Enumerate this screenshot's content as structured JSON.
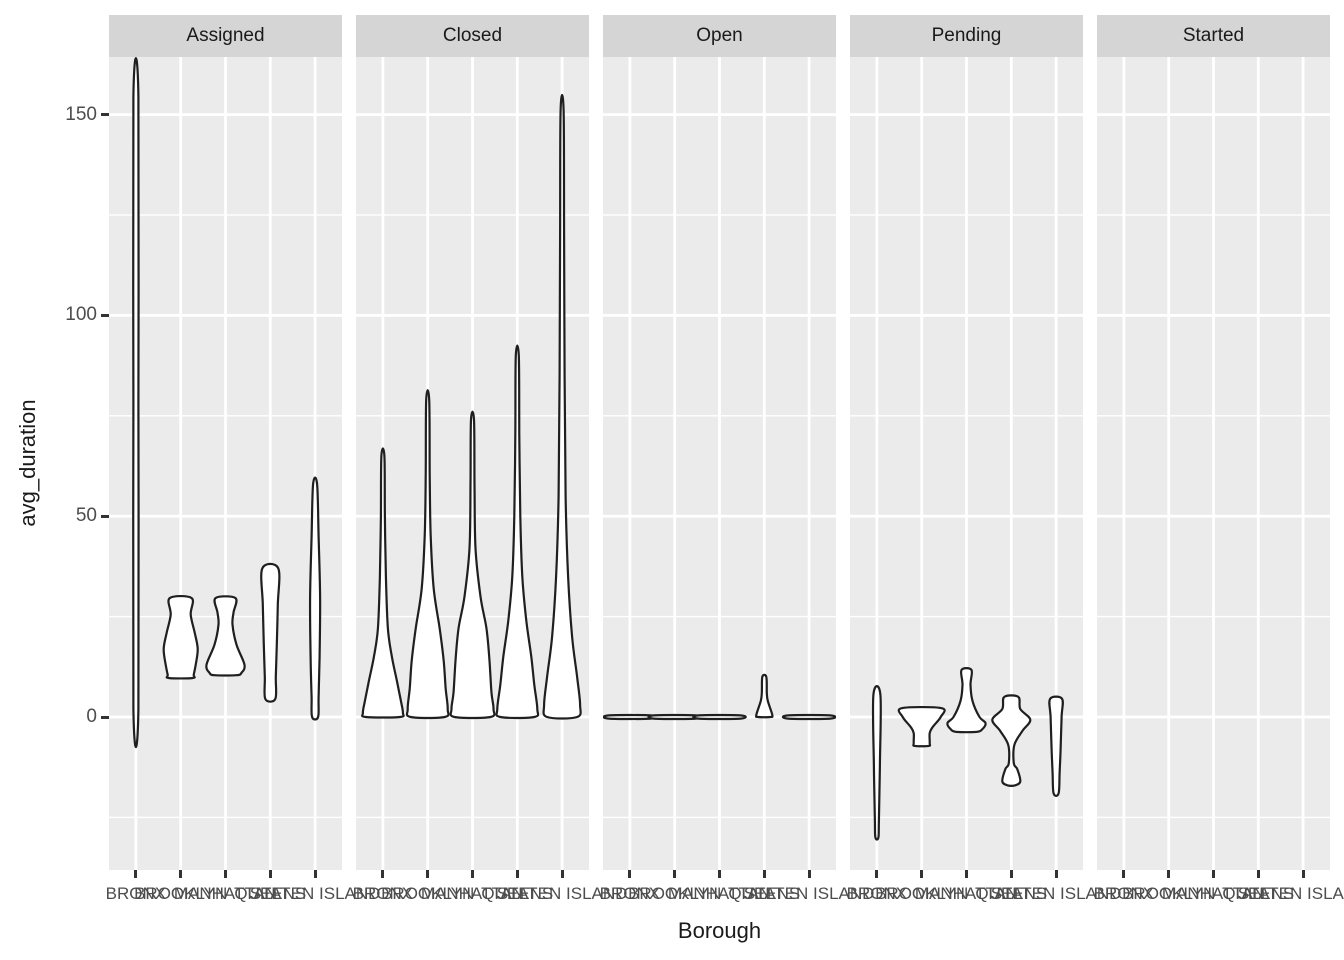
{
  "axes": {
    "x_title": "Borough",
    "y_title": "avg_duration"
  },
  "style": {
    "panel_background": "#ebebeb",
    "strip_background": "#d5d5d5",
    "grid_color": "#ffffff",
    "violin_fill": "#ffffff",
    "violin_stroke": "#1f1f1f",
    "axis_text_color": "#4d4d4d",
    "title_color": "#1a1a1a",
    "tick_mark_color": "#333333"
  },
  "chart_data": {
    "type": "violin",
    "facet_variable_values": [
      "Assigned",
      "Closed",
      "Open",
      "Pending",
      "Started"
    ],
    "x": {
      "label": "Borough",
      "categories": [
        "BRONX",
        "BROOKLYN",
        "MANHATTAN",
        "QUEENS",
        "STATEN ISLAND"
      ]
    },
    "y": {
      "label": "avg_duration",
      "major_ticks": [
        0,
        50,
        100,
        150
      ],
      "minor_ticks": [
        -25,
        25,
        75,
        125
      ],
      "domain": [
        -38,
        164
      ]
    },
    "legend": "none",
    "grid": "on",
    "facets": [
      {
        "label": "Assigned",
        "violins": [
          {
            "borough": "BRONX",
            "y_min": 2,
            "y_max": 154.5,
            "profile": [
              [
                154.5,
                2.5
              ],
              [
                78,
                2.5
              ],
              [
                2,
                2.5
              ]
            ]
          },
          {
            "borough": "BROOKLYN",
            "y_min": 9.7,
            "y_max": 29.6,
            "profile": [
              [
                29.6,
                11
              ],
              [
                25.5,
                10
              ],
              [
                21,
                14
              ],
              [
                17,
                17
              ],
              [
                13,
                15
              ],
              [
                10.5,
                13
              ],
              [
                9.7,
                12
              ]
            ]
          },
          {
            "borough": "MANHATTAN",
            "y_min": 10.4,
            "y_max": 29.6,
            "profile": [
              [
                29.6,
                10
              ],
              [
                26,
                8
              ],
              [
                23,
                7
              ],
              [
                18,
                11
              ],
              [
                13,
                19
              ],
              [
                11,
                16
              ],
              [
                10.4,
                11
              ]
            ]
          },
          {
            "borough": "QUEENS",
            "y_min": 4.5,
            "y_max": 37,
            "profile": [
              [
                37,
                8
              ],
              [
                28,
                7.5
              ],
              [
                18,
                6.5
              ],
              [
                10,
                5.5
              ],
              [
                4.5,
                5
              ]
            ]
          },
          {
            "borough": "STATEN ISLAND",
            "y_min": 0,
            "y_max": 58,
            "profile": [
              [
                58,
                2
              ],
              [
                45,
                3.5
              ],
              [
                30,
                5
              ],
              [
                15,
                4.5
              ],
              [
                5,
                3.5
              ],
              [
                0,
                3
              ]
            ]
          }
        ]
      },
      {
        "label": "Closed",
        "violins": [
          {
            "borough": "BRONX",
            "y_min": 0,
            "y_max": 65,
            "profile": [
              [
                65,
                1.5
              ],
              [
                50,
                2
              ],
              [
                35,
                3
              ],
              [
                22,
                5
              ],
              [
                15,
                9
              ],
              [
                9,
                14
              ],
              [
                4,
                18
              ],
              [
                1,
                20
              ],
              [
                0,
                17
              ]
            ]
          },
          {
            "borough": "BROOKLYN",
            "y_min": 0,
            "y_max": 79,
            "profile": [
              [
                79,
                1.5
              ],
              [
                60,
                2
              ],
              [
                45,
                3
              ],
              [
                32,
                6
              ],
              [
                22,
                12
              ],
              [
                14,
                16
              ],
              [
                7,
                18
              ],
              [
                2,
                20
              ],
              [
                0,
                17
              ]
            ]
          },
          {
            "borough": "MANHATTAN",
            "y_min": 0,
            "y_max": 74,
            "profile": [
              [
                74,
                1.5
              ],
              [
                58,
                2
              ],
              [
                42,
                3
              ],
              [
                30,
                8
              ],
              [
                22,
                14
              ],
              [
                14,
                17
              ],
              [
                6,
                19
              ],
              [
                2,
                21
              ],
              [
                0,
                18
              ]
            ]
          },
          {
            "borough": "QUEENS",
            "y_min": 0,
            "y_max": 90,
            "profile": [
              [
                90,
                1.5
              ],
              [
                70,
                2
              ],
              [
                50,
                3
              ],
              [
                35,
                5
              ],
              [
                24,
                9
              ],
              [
                15,
                14
              ],
              [
                8,
                17
              ],
              [
                2,
                20
              ],
              [
                0,
                17
              ]
            ]
          },
          {
            "borough": "STATEN ISLAND",
            "y_min": 0,
            "y_max": 151,
            "profile": [
              [
                151,
                1.5
              ],
              [
                120,
                2
              ],
              [
                85,
                2.5
              ],
              [
                55,
                3.5
              ],
              [
                35,
                6
              ],
              [
                20,
                10
              ],
              [
                10,
                15
              ],
              [
                3,
                18
              ],
              [
                0,
                15
              ]
            ]
          }
        ]
      },
      {
        "label": "Open",
        "violins": [
          {
            "borough": "BRONX",
            "y_min": 0,
            "y_max": 0,
            "profile": [
              [
                0.4,
                21
              ],
              [
                -0.4,
                21
              ]
            ]
          },
          {
            "borough": "BROOKLYN",
            "y_min": 0,
            "y_max": 0,
            "profile": [
              [
                0.4,
                21
              ],
              [
                -0.4,
                21
              ]
            ]
          },
          {
            "borough": "MANHATTAN",
            "y_min": 0,
            "y_max": 0,
            "profile": [
              [
                0.4,
                21
              ],
              [
                -0.4,
                21
              ]
            ]
          },
          {
            "borough": "QUEENS",
            "y_min": 0,
            "y_max": 10,
            "profile": [
              [
                10,
                2
              ],
              [
                6,
                2.5
              ],
              [
                4,
                3.5
              ],
              [
                0.5,
                8
              ],
              [
                0,
                6
              ]
            ]
          },
          {
            "borough": "STATEN ISLAND",
            "y_min": 0,
            "y_max": 0,
            "profile": [
              [
                0.4,
                21
              ],
              [
                -0.4,
                21
              ]
            ]
          }
        ]
      },
      {
        "label": "Pending",
        "violins": [
          {
            "borough": "BRONX",
            "y_min": -30,
            "y_max": 5.5,
            "profile": [
              [
                5.5,
                3.5
              ],
              [
                -12,
                3
              ],
              [
                -26,
                2
              ],
              [
                -30,
                1.5
              ]
            ]
          },
          {
            "borough": "BROOKLYN",
            "y_min": -7.2,
            "y_max": 2.2,
            "profile": [
              [
                2.2,
                20
              ],
              [
                0,
                19
              ],
              [
                -2.5,
                11
              ],
              [
                -4,
                8
              ],
              [
                -6.5,
                8
              ],
              [
                -7.2,
                7
              ]
            ]
          },
          {
            "borough": "MANHATTAN",
            "y_min": -3.7,
            "y_max": 11.7,
            "profile": [
              [
                11.7,
                5
              ],
              [
                8,
                4
              ],
              [
                4,
                6
              ],
              [
                0,
                13
              ],
              [
                -1.5,
                19
              ],
              [
                -3,
                16
              ],
              [
                -3.7,
                10
              ]
            ]
          },
          {
            "borough": "QUEENS",
            "y_min": -17,
            "y_max": 5,
            "profile": [
              [
                5,
                7
              ],
              [
                2,
                9
              ],
              [
                -0.7,
                19
              ],
              [
                -3.5,
                11
              ],
              [
                -7,
                3
              ],
              [
                -11.5,
                2.5
              ],
              [
                -13,
                6
              ],
              [
                -16,
                9
              ],
              [
                -17,
                4
              ]
            ]
          },
          {
            "borough": "STATEN ISLAND",
            "y_min": -19,
            "y_max": 4.5,
            "profile": [
              [
                4.5,
                6
              ],
              [
                0,
                5.5
              ],
              [
                -8,
                4.5
              ],
              [
                -14,
                3.5
              ],
              [
                -19,
                2.5
              ]
            ]
          }
        ]
      },
      {
        "label": "Started",
        "violins": []
      }
    ]
  }
}
